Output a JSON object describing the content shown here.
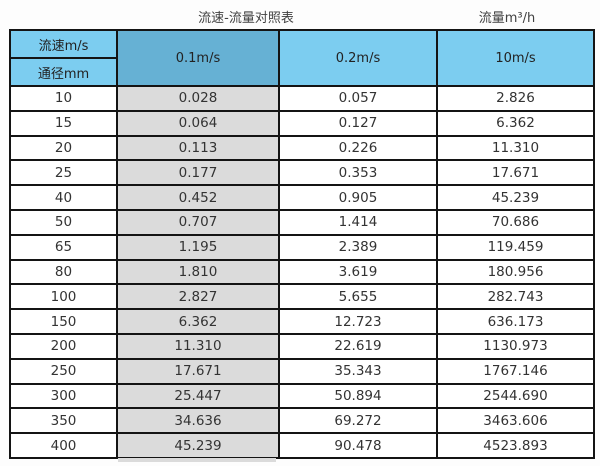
{
  "page": {
    "title_left": "流速-流量对照表",
    "title_right": "流量m³/h"
  },
  "table": {
    "corner_top": "流速m/s",
    "corner_bottom": "通径mm",
    "velocity_columns": [
      "0.1m/s",
      "0.2m/s",
      "10m/s"
    ],
    "highlighted_column": "0.1m/s",
    "rows": [
      {
        "diameter": "10",
        "values": [
          "0.028",
          "0.057",
          "2.826"
        ]
      },
      {
        "diameter": "15",
        "values": [
          "0.064",
          "0.127",
          "6.362"
        ]
      },
      {
        "diameter": "20",
        "values": [
          "0.113",
          "0.226",
          "11.310"
        ]
      },
      {
        "diameter": "25",
        "values": [
          "0.177",
          "0.353",
          "17.671"
        ]
      },
      {
        "diameter": "40",
        "values": [
          "0.452",
          "0.905",
          "45.239"
        ]
      },
      {
        "diameter": "50",
        "values": [
          "0.707",
          "1.414",
          "70.686"
        ]
      },
      {
        "diameter": "65",
        "values": [
          "1.195",
          "2.389",
          "119.459"
        ]
      },
      {
        "diameter": "80",
        "values": [
          "1.810",
          "3.619",
          "180.956"
        ]
      },
      {
        "diameter": "100",
        "values": [
          "2.827",
          "5.655",
          "282.743"
        ]
      },
      {
        "diameter": "150",
        "values": [
          "6.362",
          "12.723",
          "636.173"
        ]
      },
      {
        "diameter": "200",
        "values": [
          "11.310",
          "22.619",
          "1130.973"
        ]
      },
      {
        "diameter": "250",
        "values": [
          "17.671",
          "35.343",
          "1767.146"
        ]
      },
      {
        "diameter": "300",
        "values": [
          "25.447",
          "50.894",
          "2544.690"
        ]
      },
      {
        "diameter": "350",
        "values": [
          "34.636",
          "69.272",
          "3463.606"
        ]
      },
      {
        "diameter": "400",
        "values": [
          "45.239",
          "90.478",
          "4523.893"
        ]
      }
    ]
  },
  "chart_data": {
    "type": "table",
    "title": "流速-流量对照表",
    "unit_label": "流量m³/h",
    "columns": [
      "通径mm",
      "0.1m/s",
      "0.2m/s",
      "10m/s"
    ],
    "rows": [
      [
        10,
        0.028,
        0.057,
        2.826
      ],
      [
        15,
        0.064,
        0.127,
        6.362
      ],
      [
        20,
        0.113,
        0.226,
        11.31
      ],
      [
        25,
        0.177,
        0.353,
        17.671
      ],
      [
        40,
        0.452,
        0.905,
        45.239
      ],
      [
        50,
        0.707,
        1.414,
        70.686
      ],
      [
        65,
        1.195,
        2.389,
        119.459
      ],
      [
        80,
        1.81,
        3.619,
        180.956
      ],
      [
        100,
        2.827,
        5.655,
        282.743
      ],
      [
        150,
        6.362,
        12.723,
        636.173
      ],
      [
        200,
        11.31,
        22.619,
        1130.973
      ],
      [
        250,
        17.671,
        35.343,
        1767.146
      ],
      [
        300,
        25.447,
        50.894,
        2544.69
      ],
      [
        350,
        34.636,
        69.272,
        3463.606
      ],
      [
        400,
        45.239,
        90.478,
        4523.893
      ]
    ],
    "layout_hints": {
      "highlighted_column": "0.1m/s",
      "header_fill": "light-blue",
      "highlight_header_fill": "darker-blue",
      "highlight_body_fill": "gray",
      "grid": true
    }
  },
  "colors": {
    "header_blue": "#7ccdf0",
    "highlight_blue": "#66b1d4",
    "highlight_gray": "#dbdbdb",
    "border_color": "#141414",
    "text_color": "#303030",
    "page_bg": "#fdfdfd"
  }
}
